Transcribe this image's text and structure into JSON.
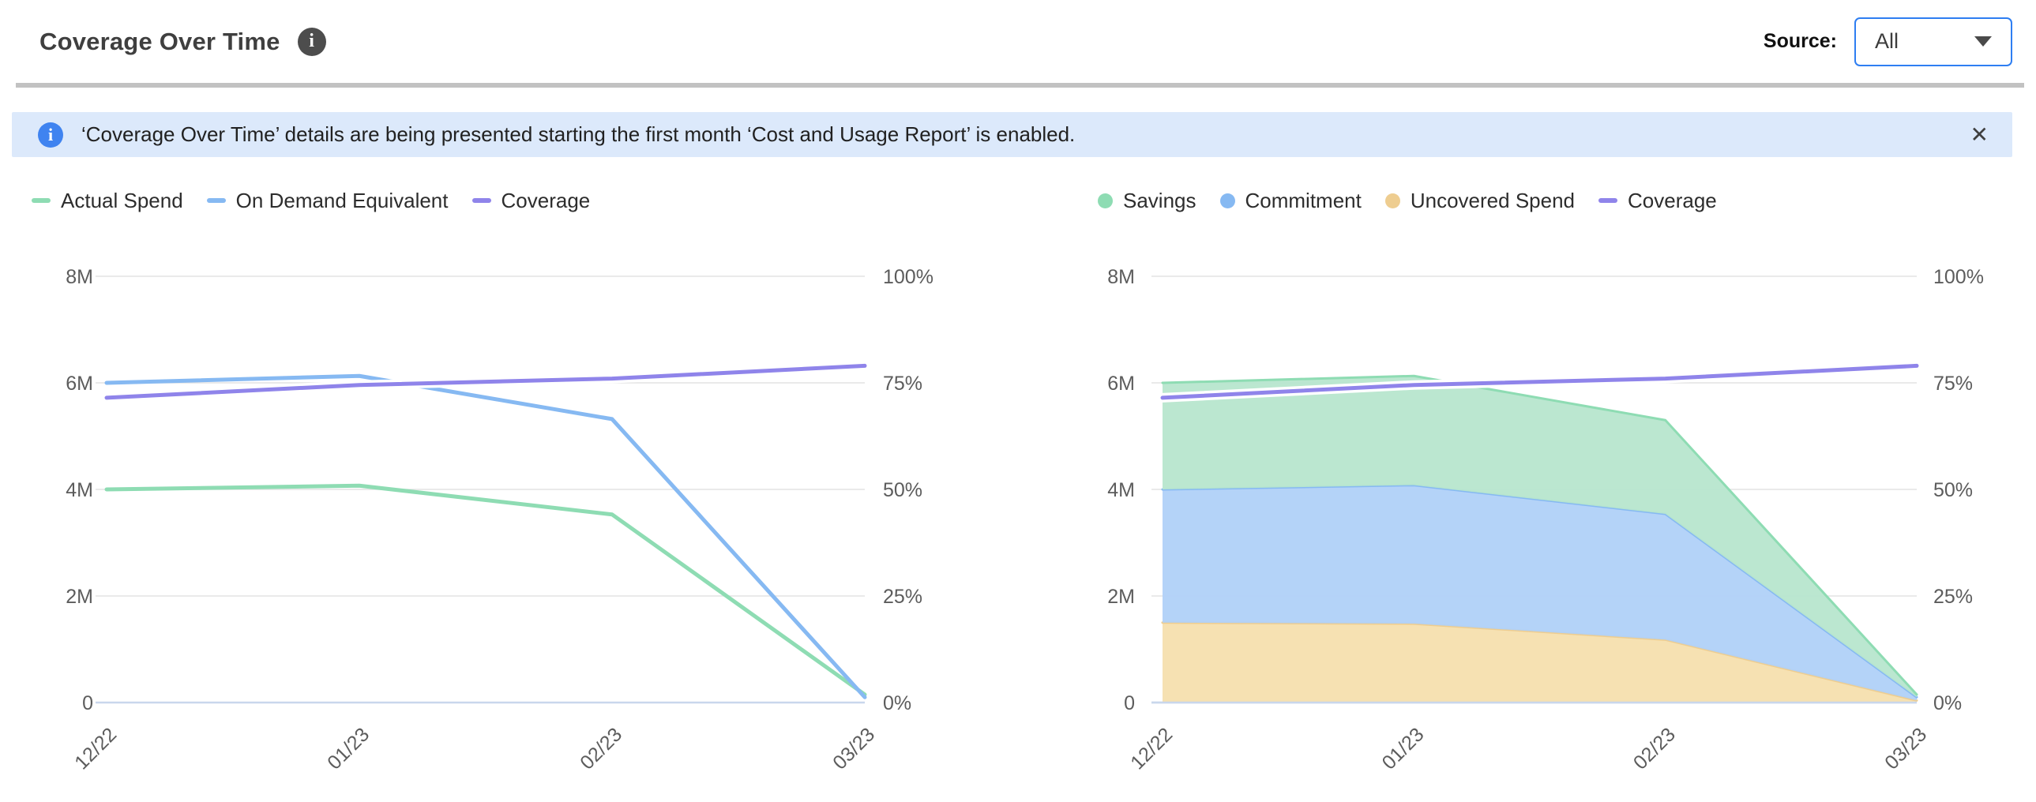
{
  "header": {
    "title": "Coverage Over Time",
    "info_icon_glyph": "i",
    "source_label": "Source:",
    "source_value": "All"
  },
  "banner": {
    "info_icon_glyph": "i",
    "text": "‘Coverage Over Time’ details are being presented starting the first month ‘Cost and Usage Report’ is enabled.",
    "close_glyph": "✕"
  },
  "colors": {
    "accent_blue_border": "#2e7ef2",
    "banner_bg": "#dce9fb",
    "banner_icon_blue": "#3f83f0",
    "grid": "#e4e4e4",
    "zero_axis": "#c9d7ec",
    "axis_text": "#5c5c5c",
    "series_green": "#8edcb3",
    "series_blue": "#86b9f2",
    "series_purple": "#8f84ea",
    "series_orange": "#eecd90",
    "fill_green": "#b7e6cd",
    "fill_blue": "#b0d1f8",
    "fill_orange": "#f6dfae"
  },
  "chart_data": [
    {
      "type": "line",
      "title": "Spend and Coverage over time",
      "categories": [
        "12/22",
        "01/23",
        "02/23",
        "03/23"
      ],
      "values_unit": "millions USD (left axis), percent (right axis)",
      "grid": true,
      "legend_position": "top-left",
      "left_axis": {
        "max": 8,
        "ticks": [
          0,
          2,
          4,
          6,
          8
        ],
        "labels": [
          "0",
          "2M",
          "4M",
          "6M",
          "8M"
        ]
      },
      "right_axis": {
        "max": 100,
        "ticks": [
          0,
          25,
          50,
          75,
          100
        ],
        "labels": [
          "0%",
          "25%",
          "50%",
          "75%",
          "100%"
        ]
      },
      "series": [
        {
          "name": "Actual Spend",
          "axis": "left",
          "color": "#8edcb3",
          "values": [
            4.0,
            4.07,
            3.53,
            0.15
          ]
        },
        {
          "name": "On Demand Equivalent",
          "axis": "left",
          "color": "#86b9f2",
          "values": [
            6.0,
            6.13,
            5.32,
            0.1
          ]
        },
        {
          "name": "Coverage",
          "axis": "right",
          "color": "#8f84ea",
          "halo": true,
          "values": [
            71.5,
            74.5,
            76,
            79
          ]
        }
      ],
      "legend": [
        {
          "label": "Actual Spend",
          "swatch": "dash",
          "color": "#8edcb3"
        },
        {
          "label": "On Demand Equivalent",
          "swatch": "dash",
          "color": "#86b9f2"
        },
        {
          "label": "Coverage",
          "swatch": "dash",
          "color": "#8f84ea"
        }
      ]
    },
    {
      "type": "stacked-area",
      "title": "Savings, Commitment and Uncovered Spend over time",
      "categories": [
        "12/22",
        "01/23",
        "02/23",
        "03/23"
      ],
      "values_unit": "millions USD (left axis), percent (right axis)",
      "grid": true,
      "legend_position": "top-left",
      "left_axis": {
        "max": 8,
        "ticks": [
          0,
          2,
          4,
          6,
          8
        ],
        "labels": [
          "0",
          "2M",
          "4M",
          "6M",
          "8M"
        ]
      },
      "right_axis": {
        "max": 100,
        "ticks": [
          0,
          25,
          50,
          75,
          100
        ],
        "labels": [
          "0%",
          "25%",
          "50%",
          "75%",
          "100%"
        ]
      },
      "series": [
        {
          "name": "Uncovered Spend",
          "kind": "area",
          "axis": "left",
          "color": "#eecd90",
          "fill": "#f6dfae",
          "values": [
            1.5,
            1.48,
            1.18,
            0.04
          ]
        },
        {
          "name": "Commitment",
          "kind": "area",
          "axis": "left",
          "color": "#86b9f2",
          "fill": "#b0d1f8",
          "values": [
            2.5,
            2.6,
            2.36,
            0.06
          ]
        },
        {
          "name": "Savings",
          "kind": "area",
          "axis": "left",
          "color": "#8edcb3",
          "fill": "#b7e6cd",
          "values": [
            2.0,
            2.05,
            1.76,
            0.05
          ]
        },
        {
          "name": "Coverage",
          "kind": "line",
          "axis": "right",
          "color": "#8f84ea",
          "halo": true,
          "values": [
            71.5,
            74.5,
            76,
            79
          ]
        }
      ],
      "legend": [
        {
          "label": "Savings",
          "swatch": "circle",
          "color": "#8edcb3"
        },
        {
          "label": "Commitment",
          "swatch": "circle",
          "color": "#86b9f2"
        },
        {
          "label": "Uncovered Spend",
          "swatch": "circle",
          "color": "#eecd90"
        },
        {
          "label": "Coverage",
          "swatch": "dash",
          "color": "#8f84ea"
        }
      ]
    }
  ]
}
